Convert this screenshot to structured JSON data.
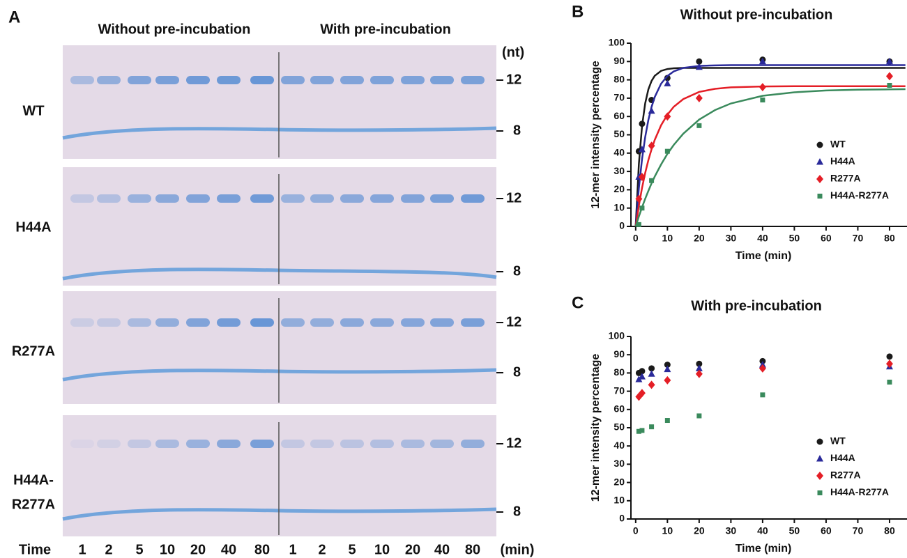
{
  "panel_a": {
    "label": "A",
    "headers": [
      "Without pre-incubation",
      "With pre-incubation"
    ],
    "size_unit": "(nt)",
    "gels": [
      {
        "name_lines": [
          "WT"
        ],
        "markers": [
          "12",
          "8"
        ]
      },
      {
        "name_lines": [
          "H44A"
        ],
        "markers": [
          "12",
          "8"
        ]
      },
      {
        "name_lines": [
          "R277A"
        ],
        "markers": [
          "12",
          "8"
        ]
      },
      {
        "name_lines": [
          "H44A-",
          "R277A"
        ],
        "markers": [
          "12",
          "8"
        ]
      }
    ],
    "time_label": "Time",
    "lanes": [
      1,
      2,
      5,
      10,
      20,
      40,
      80,
      1,
      2,
      5,
      10,
      20,
      40,
      80
    ],
    "time_unit": "(min)"
  },
  "chart_data": [
    {
      "type": "scatter",
      "panel": "B",
      "title": "Without pre-incubation",
      "x_label": "Time (min)",
      "y_label": "12-mer intensity percentage",
      "xlim": [
        -1.5,
        85.5
      ],
      "xticks": [
        0,
        10,
        20,
        30,
        40,
        50,
        60,
        70,
        80
      ],
      "ylim": [
        0,
        100
      ],
      "yticks": [
        0,
        10,
        20,
        30,
        40,
        50,
        60,
        70,
        80,
        90,
        100
      ],
      "legend": "right",
      "x": [
        1,
        2,
        5,
        10,
        20,
        40,
        80
      ],
      "fit_x": [
        0,
        1,
        2,
        3,
        4,
        5,
        6,
        8,
        10,
        12,
        15,
        20,
        25,
        30,
        40,
        50,
        60,
        70,
        80,
        85
      ],
      "series": [
        {
          "name": "WT",
          "color": "#1a1a1a",
          "marker": "circle",
          "values": [
            41,
            56,
            69,
            81,
            90,
            91,
            90
          ],
          "fit": [
            0,
            34.0,
            54.7,
            67.2,
            74.8,
            79.4,
            82.2,
            84.9,
            85.9,
            86.3,
            86.5,
            86.5,
            86.5,
            86.5,
            86.5,
            86.5,
            86.5,
            86.5,
            86.5,
            86.5
          ]
        },
        {
          "name": "H44A",
          "color": "#2a2a9a",
          "marker": "triangle",
          "values": [
            27,
            42,
            63,
            78,
            87,
            90,
            90
          ],
          "fit": [
            0,
            20.8,
            36.7,
            48.8,
            58.1,
            65.2,
            70.6,
            77.9,
            82.1,
            84.6,
            86.5,
            87.6,
            87.9,
            88,
            88,
            88,
            88,
            88,
            88,
            88
          ]
        },
        {
          "name": "R277A",
          "color": "#e41e26",
          "marker": "diamond",
          "values": [
            15,
            27,
            44,
            60,
            70,
            76,
            82
          ],
          "fit": [
            0,
            11.3,
            21.0,
            29.2,
            36.2,
            42.1,
            47.2,
            55.2,
            61.0,
            65.3,
            69.5,
            73.4,
            75.1,
            75.9,
            76.4,
            76.5,
            76.5,
            76.5,
            76.5,
            76.5
          ]
        },
        {
          "name": "H44A-R277A",
          "color": "#3a8a5c",
          "marker": "square",
          "values": [
            1,
            10,
            25,
            41,
            55,
            69,
            77
          ],
          "fit": [
            0,
            5.4,
            10.4,
            15.1,
            19.4,
            23.5,
            27.2,
            33.8,
            39.6,
            44.5,
            50.6,
            58.3,
            63.5,
            67.1,
            71.3,
            73.2,
            74.2,
            74.6,
            74.8,
            74.9
          ]
        }
      ]
    },
    {
      "type": "scatter",
      "panel": "C",
      "title": "With pre-incubation",
      "x_label": "Time (min)",
      "y_label": "12-mer intensity percentage",
      "xlim": [
        -1.5,
        85.5
      ],
      "xticks": [
        0,
        10,
        20,
        30,
        40,
        50,
        60,
        70,
        80
      ],
      "ylim": [
        0,
        100
      ],
      "yticks": [
        0,
        10,
        20,
        30,
        40,
        50,
        60,
        70,
        80,
        90,
        100
      ],
      "legend": "right",
      "x": [
        1,
        2,
        5,
        10,
        20,
        40,
        80
      ],
      "series": [
        {
          "name": "WT",
          "color": "#1a1a1a",
          "marker": "circle",
          "values": [
            80,
            81,
            82.5,
            84.5,
            85,
            86.5,
            89
          ]
        },
        {
          "name": "H44A",
          "color": "#2a2a9a",
          "marker": "triangle",
          "values": [
            76.5,
            78,
            79.5,
            82,
            82.5,
            84.5,
            83.5
          ]
        },
        {
          "name": "R277A",
          "color": "#e41e26",
          "marker": "diamond",
          "values": [
            67,
            69,
            73.5,
            76,
            79.5,
            82.5,
            85
          ]
        },
        {
          "name": "H44A-R277A",
          "color": "#3a8a5c",
          "marker": "square",
          "values": [
            48,
            48.5,
            50.5,
            54,
            56.5,
            68,
            75
          ]
        }
      ]
    }
  ]
}
